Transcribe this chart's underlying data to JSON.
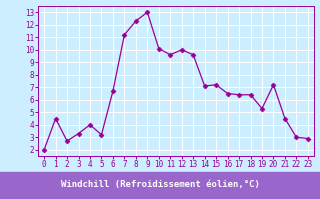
{
  "x": [
    0,
    1,
    2,
    3,
    4,
    5,
    6,
    7,
    8,
    9,
    10,
    11,
    12,
    13,
    14,
    15,
    16,
    17,
    18,
    19,
    20,
    21,
    22,
    23
  ],
  "y": [
    2,
    4.5,
    2.7,
    3.3,
    4.0,
    3.2,
    6.7,
    11.2,
    12.3,
    13.0,
    10.1,
    9.6,
    10.0,
    9.6,
    7.1,
    7.2,
    6.5,
    6.4,
    6.4,
    5.3,
    7.2,
    4.5,
    3.0,
    2.9
  ],
  "line_color": "#990099",
  "marker": "D",
  "marker_size": 2.5,
  "bg_color": "#cceeff",
  "plot_bg_color": "#cceeff",
  "grid_color": "#ffffff",
  "xlabel": "Windchill (Refroidissement éolien,°C)",
  "xlabel_text_color": "#ffffff",
  "xlabel_bg_color": "#9966cc",
  "ylim": [
    1.5,
    13.5
  ],
  "xlim": [
    -0.5,
    23.5
  ],
  "yticks": [
    2,
    3,
    4,
    5,
    6,
    7,
    8,
    9,
    10,
    11,
    12,
    13
  ],
  "xticks": [
    0,
    1,
    2,
    3,
    4,
    5,
    6,
    7,
    8,
    9,
    10,
    11,
    12,
    13,
    14,
    15,
    16,
    17,
    18,
    19,
    20,
    21,
    22,
    23
  ],
  "tick_color": "#990099",
  "tick_labelsize": 5.5,
  "xlabel_fontsize": 6.5,
  "spine_color": "#990099",
  "linewidth": 0.9
}
